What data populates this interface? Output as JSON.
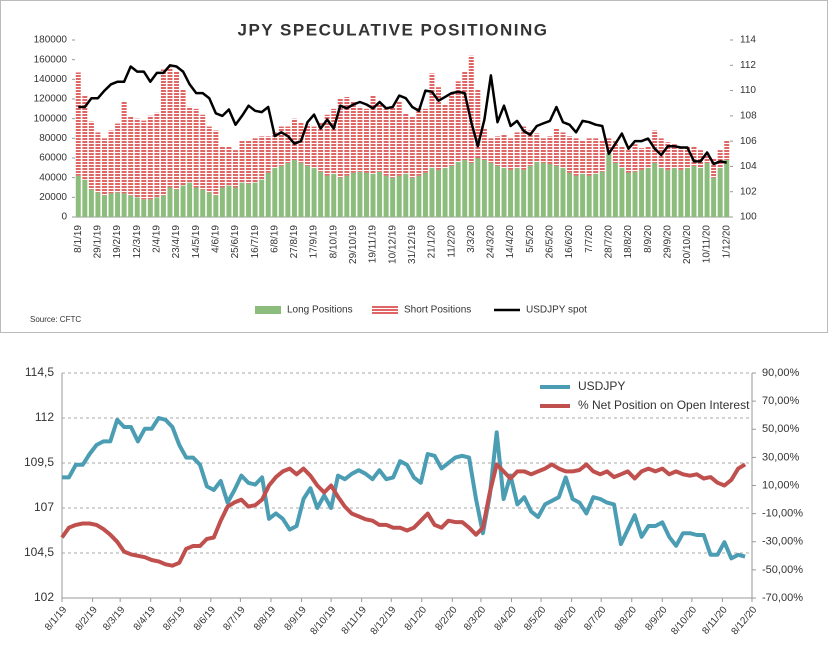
{
  "chart_data": [
    {
      "type": "bar",
      "stacked": true,
      "title": "JPY SPECULATIVE POSITIONING",
      "annotation": "Source: CFTC",
      "categories": [
        "8/1/19",
        null,
        null,
        "29/1/19",
        null,
        null,
        "19/2/19",
        null,
        null,
        "12/3/19",
        null,
        null,
        "2/4/19",
        null,
        null,
        "23/4/19",
        null,
        null,
        "14/5/19",
        null,
        null,
        "4/6/19",
        null,
        null,
        "25/6/19",
        null,
        null,
        "16/7/19",
        null,
        null,
        "6/8/19",
        null,
        null,
        "27/8/19",
        null,
        null,
        "17/9/19",
        null,
        null,
        "8/10/19",
        null,
        null,
        "29/10/19",
        null,
        null,
        "19/11/19",
        null,
        null,
        "10/12/19",
        null,
        null,
        "31/12/19",
        null,
        null,
        "21/1/20",
        null,
        null,
        "11/2/20",
        null,
        null,
        "3/3/20",
        null,
        null,
        "24/3/20",
        null,
        null,
        "14/4/20",
        null,
        null,
        "5/5/20",
        null,
        null,
        "26/5/20",
        null,
        null,
        "16/6/20",
        null,
        null,
        "7/7/20",
        null,
        null,
        "28/7/20",
        null,
        null,
        "18/8/20",
        null,
        null,
        "8/9/20",
        null,
        null,
        "29/9/20",
        null,
        null,
        "20/10/20",
        null,
        null,
        "10/11/20",
        null,
        null,
        "1/12/20"
      ],
      "series": [
        {
          "name": "Long Positions",
          "color": "#8dbd7d",
          "values": [
            42000,
            38000,
            28000,
            25000,
            22000,
            24000,
            25000,
            24000,
            22000,
            20000,
            18000,
            18000,
            20000,
            22000,
            30000,
            28000,
            32000,
            35000,
            30000,
            28000,
            25000,
            22000,
            30000,
            32000,
            30000,
            35000,
            34000,
            35000,
            38000,
            45000,
            50000,
            52000,
            55000,
            58000,
            55000,
            52000,
            50000,
            46000,
            42000,
            44000,
            40000,
            42000,
            45000,
            46000,
            45000,
            44000,
            46000,
            42000,
            40000,
            42000,
            44000,
            40000,
            42000,
            45000,
            50000,
            48000,
            50000,
            52000,
            56000,
            58000,
            55000,
            60000,
            58000,
            55000,
            52000,
            50000,
            48000,
            50000,
            48000,
            52000,
            56000,
            55000,
            54000,
            52000,
            50000,
            45000,
            42000,
            44000,
            42000,
            44000,
            46000,
            65000,
            55000,
            50000,
            45000,
            46000,
            48000,
            50000,
            55000,
            50000,
            48000,
            50000,
            48000,
            50000,
            52000,
            50000,
            55000,
            40000,
            50000,
            58000
          ]
        },
        {
          "name": "Short Positions",
          "color": "#e06666",
          "values": [
            105000,
            86000,
            69000,
            61000,
            58000,
            64000,
            70000,
            94000,
            80000,
            80000,
            80000,
            85000,
            86000,
            128000,
            122000,
            120000,
            98000,
            77000,
            80000,
            76000,
            67000,
            66000,
            42000,
            40000,
            38000,
            43000,
            44000,
            45000,
            44000,
            37000,
            36000,
            40000,
            37000,
            42000,
            41000,
            42000,
            42000,
            50000,
            62000,
            66000,
            80000,
            80000,
            73000,
            66000,
            65000,
            80000,
            69000,
            68000,
            72000,
            76000,
            61000,
            62000,
            70000,
            65000,
            96000,
            84000,
            65000,
            73000,
            82000,
            90000,
            109000,
            70000,
            32000,
            25000,
            30000,
            34000,
            32000,
            36000,
            44000,
            36000,
            29000,
            25000,
            28000,
            38000,
            36000,
            37000,
            38000,
            34000,
            38000,
            36000,
            32000,
            15000,
            23000,
            22000,
            23000,
            28000,
            22000,
            22000,
            33000,
            30000,
            28000,
            24000,
            24000,
            22000,
            20000,
            18000,
            10000,
            20000,
            18000,
            20000
          ]
        },
        {
          "name": "USDJPY spot",
          "color": "#000000",
          "axis": "y2",
          "values": [
            108.7,
            108.7,
            109.4,
            109.4,
            110,
            110.5,
            110.7,
            110.7,
            111.9,
            111.5,
            111.5,
            110.7,
            111.4,
            111.4,
            112,
            111.9,
            111.5,
            110.5,
            109.8,
            109.8,
            109.4,
            108.2,
            108,
            108.5,
            107.3,
            108,
            108.8,
            108.4,
            108.3,
            108.7,
            106.4,
            106.7,
            106.4,
            105.8,
            106,
            107.5,
            108.1,
            107,
            107.7,
            107,
            108.8,
            108.6,
            108.9,
            109.1,
            108.9,
            108.6,
            109.1,
            108.6,
            108.7,
            109.6,
            109.4,
            108.7,
            108.4,
            110,
            109.9,
            109.2,
            109.5,
            109.8,
            109.9,
            109.8,
            107.5,
            105.6,
            107.7,
            111.2,
            107.5,
            108.8,
            107.2,
            107.6,
            106.8,
            106.5,
            107.2,
            107.4,
            107.6,
            108.7,
            107.5,
            107.3,
            106.7,
            107.6,
            107.5,
            107.3,
            107.2,
            105,
            105.8,
            106.6,
            105.4,
            106,
            106,
            106.2,
            105.4,
            104.9,
            105.6,
            105.6,
            105.5,
            105.5,
            104.4,
            104.4,
            105.1,
            104.2,
            104.4,
            104.3
          ]
        }
      ],
      "ylim": [
        0,
        180000
      ],
      "yticks": [
        0,
        20000,
        40000,
        60000,
        80000,
        100000,
        120000,
        140000,
        160000,
        180000
      ],
      "y2lim": [
        100,
        114
      ],
      "y2ticks": [
        100,
        102,
        104,
        106,
        108,
        110,
        112,
        114
      ],
      "grid": false,
      "legend": "bottom"
    },
    {
      "type": "line",
      "x": [
        "8/1/19",
        "15/1/19",
        "22/1/19",
        "29/1/19",
        "5/2/19",
        "12/2/19",
        "19/2/19",
        "26/2/19",
        "5/3/19",
        "12/3/19",
        "19/3/19",
        "26/3/19",
        "2/4/19",
        "9/4/19",
        "16/4/19",
        "23/4/19",
        "30/4/19",
        "7/5/19",
        "14/5/19",
        "21/5/19",
        "28/5/19",
        "4/6/19",
        "11/6/19",
        "18/6/19",
        "25/6/19",
        "2/7/19",
        "9/7/19",
        "16/7/19",
        "23/7/19",
        "30/7/19",
        "6/8/19",
        "13/8/19",
        "20/8/19",
        "27/8/19",
        "3/9/19",
        "10/9/19",
        "17/9/19",
        "24/9/19",
        "1/10/19",
        "8/10/19",
        "15/10/19",
        "22/10/19",
        "29/10/19",
        "5/11/19",
        "12/11/19",
        "19/11/19",
        "26/11/19",
        "3/12/19",
        "10/12/19",
        "17/12/19",
        "24/12/19",
        "31/12/19",
        "7/1/20",
        "14/1/20",
        "21/1/20",
        "28/1/20",
        "4/2/20",
        "11/2/20",
        "18/2/20",
        "25/2/20",
        "3/3/20",
        "10/3/20",
        "17/3/20",
        "24/3/20",
        "31/3/20",
        "7/4/20",
        "14/4/20",
        "21/4/20",
        "28/4/20",
        "5/5/20",
        "12/5/20",
        "19/5/20",
        "26/5/20",
        "2/6/20",
        "9/6/20",
        "16/6/20",
        "23/6/20",
        "30/6/20",
        "7/7/20",
        "14/7/20",
        "21/7/20",
        "28/7/20",
        "4/8/20",
        "11/8/20",
        "18/8/20",
        "25/8/20",
        "1/9/20",
        "8/9/20",
        "15/9/20",
        "22/9/20",
        "29/9/20",
        "6/10/20",
        "13/10/20",
        "20/10/20",
        "27/10/20",
        "3/11/20",
        "10/11/20",
        "17/11/20",
        "24/11/20",
        "1/12/20"
      ],
      "series": [
        {
          "name": "USDJPY",
          "color": "#4b9db4",
          "values": [
            108.7,
            108.7,
            109.4,
            109.4,
            110,
            110.5,
            110.7,
            110.7,
            111.9,
            111.5,
            111.5,
            110.7,
            111.4,
            111.4,
            112,
            111.9,
            111.5,
            110.5,
            109.8,
            109.8,
            109.4,
            108.2,
            108,
            108.5,
            107.3,
            108,
            108.8,
            108.4,
            108.3,
            108.7,
            106.4,
            106.7,
            106.4,
            105.8,
            106,
            107.5,
            108.1,
            107,
            107.7,
            107,
            108.8,
            108.6,
            108.9,
            109.1,
            108.9,
            108.6,
            109.1,
            108.6,
            108.7,
            109.6,
            109.4,
            108.7,
            108.4,
            110,
            109.9,
            109.2,
            109.5,
            109.8,
            109.9,
            109.8,
            107.5,
            105.6,
            107.7,
            111.2,
            107.5,
            108.8,
            107.2,
            107.6,
            106.8,
            106.5,
            107.2,
            107.4,
            107.6,
            108.7,
            107.5,
            107.3,
            106.7,
            107.6,
            107.5,
            107.3,
            107.2,
            105,
            105.8,
            106.6,
            105.4,
            106,
            106,
            106.2,
            105.4,
            104.9,
            105.6,
            105.6,
            105.5,
            105.5,
            104.4,
            104.4,
            105.1,
            104.2,
            104.4,
            104.3
          ]
        },
        {
          "name": "% Net Position on Open Interest",
          "color": "#c0504d",
          "axis": "y2",
          "values": [
            -27,
            -20,
            -18,
            -17,
            -17,
            -18,
            -21,
            -25,
            -30,
            -37,
            -39,
            -40,
            -41,
            -43,
            -44,
            -46,
            -47,
            -45,
            -35,
            -33,
            -33,
            -28,
            -27,
            -15,
            -5,
            -2,
            0,
            -5,
            -4,
            0,
            10,
            16,
            20,
            22,
            18,
            22,
            17,
            10,
            5,
            10,
            2,
            -5,
            -10,
            -12,
            -14,
            -15,
            -18,
            -18,
            -20,
            -20,
            -22,
            -20,
            -15,
            -10,
            -18,
            -20,
            -15,
            -16,
            -16,
            -20,
            -25,
            -20,
            5,
            25,
            20,
            15,
            20,
            20,
            18,
            20,
            22,
            25,
            22,
            20,
            20,
            21,
            25,
            20,
            18,
            20,
            16,
            18,
            20,
            15,
            20,
            22,
            20,
            22,
            18,
            20,
            18,
            17,
            18,
            15,
            16,
            12,
            10,
            14,
            22,
            25
          ]
        }
      ],
      "xticks": [
        "8/1/19",
        "8/2/19",
        "8/3/19",
        "8/4/19",
        "8/5/19",
        "8/6/19",
        "8/7/19",
        "8/8/19",
        "8/9/19",
        "8/10/19",
        "8/11/19",
        "8/12/19",
        "8/1/20",
        "8/2/20",
        "8/3/20",
        "8/4/20",
        "8/5/20",
        "8/6/20",
        "8/7/20",
        "8/8/20",
        "8/9/20",
        "8/10/20",
        "8/11/20",
        "8/12/20"
      ],
      "ylim": [
        102,
        114.5
      ],
      "yticks": [
        102,
        {
          "value": 104.5,
          "label": "104,5"
        },
        107,
        {
          "value": 109.5,
          "label": "109,5"
        },
        112,
        {
          "value": 114.5,
          "label": "114,5"
        }
      ],
      "y2lim": [
        -70,
        90
      ],
      "y2ticks": [
        {
          "value": -70,
          "label": "-70,00%"
        },
        {
          "value": -50,
          "label": "-50,00%"
        },
        {
          "value": -30,
          "label": "-30,00%"
        },
        {
          "value": -10,
          "label": "-10,00%"
        },
        {
          "value": 10,
          "label": "10,00%"
        },
        {
          "value": 30,
          "label": "30,00%"
        },
        {
          "value": 50,
          "label": "50,00%"
        },
        {
          "value": 70,
          "label": "70,00%"
        },
        {
          "value": 90,
          "label": "90,00%"
        }
      ],
      "grid": true,
      "legend": "top-right"
    }
  ]
}
